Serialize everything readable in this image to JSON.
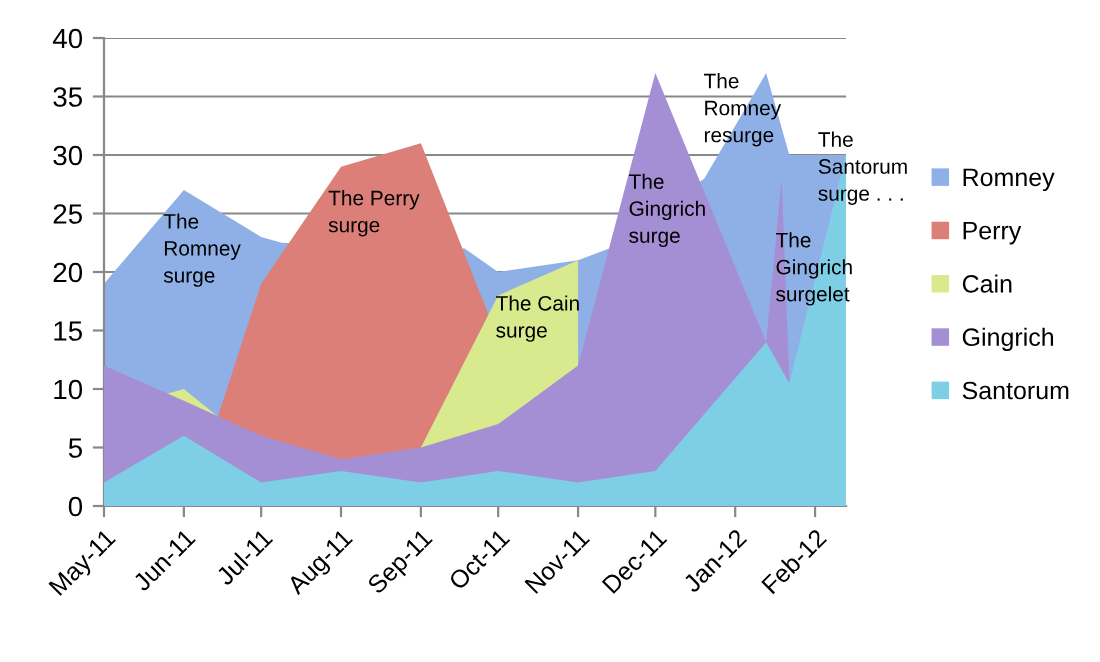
{
  "chart_data": {
    "type": "area",
    "xlim": [
      "2011-05-01",
      "2012-02-13"
    ],
    "ylim": [
      0,
      40
    ],
    "xticks": [
      {
        "value": "2011-05-01",
        "label": "May-11"
      },
      {
        "value": "2011-06-01",
        "label": "Jun-11"
      },
      {
        "value": "2011-07-01",
        "label": "Jul-11"
      },
      {
        "value": "2011-08-01",
        "label": "Aug-11"
      },
      {
        "value": "2011-09-01",
        "label": "Sep-11"
      },
      {
        "value": "2011-10-01",
        "label": "Oct-11"
      },
      {
        "value": "2011-11-01",
        "label": "Nov-11"
      },
      {
        "value": "2011-12-01",
        "label": "Dec-11"
      },
      {
        "value": "2012-01-01",
        "label": "Jan-12"
      },
      {
        "value": "2012-02-01",
        "label": "Feb-12"
      }
    ],
    "yticks": [
      0,
      5,
      10,
      15,
      20,
      25,
      30,
      35,
      40
    ],
    "grid": "y",
    "legend": "right",
    "series": [
      {
        "name": "Romney",
        "color": "#8fb0e6",
        "x": [
          "2011-05-01",
          "2011-06-01",
          "2011-07-01",
          "2011-07-09",
          "2011-09-18",
          "2011-10-01",
          "2011-11-01",
          "2011-11-13",
          "2011-12-20",
          "2012-01-13",
          "2012-01-22",
          "2012-02-13"
        ],
        "values": [
          19,
          27,
          23,
          22.5,
          22,
          20,
          21,
          22,
          28,
          37,
          30,
          30
        ]
      },
      {
        "name": "Perry",
        "color": "#dc7f78",
        "x": [
          "2011-06-14",
          "2011-07-01",
          "2011-08-01",
          "2011-09-01",
          "2011-09-27"
        ],
        "values": [
          7.5,
          19,
          29,
          31,
          16.5
        ]
      },
      {
        "name": "Cain",
        "color": "#d9ea8e",
        "x": [
          "2011-05-24",
          "2011-06-01",
          "2011-06-15",
          "2011-07-01",
          "2011-09-01",
          "2011-10-01",
          "2011-11-01"
        ],
        "values": [
          9.5,
          10,
          7.5,
          null,
          5,
          18,
          21
        ]
      },
      {
        "name": "Gingrich",
        "color": "#a58fd4",
        "x": [
          "2011-05-01",
          "2011-06-01",
          "2011-07-01",
          "2011-08-01",
          "2011-09-01",
          "2011-10-01",
          "2011-11-01",
          "2011-12-01",
          "2012-01-13",
          "2012-01-19",
          "2012-01-22"
        ],
        "values": [
          12,
          9,
          6,
          4,
          5,
          7,
          12,
          37,
          14,
          28,
          11
        ]
      },
      {
        "name": "Santorum",
        "color": "#7ecfe6",
        "x": [
          "2011-05-01",
          "2011-06-01",
          "2011-07-01",
          "2011-08-01",
          "2011-09-01",
          "2011-10-01",
          "2011-11-01",
          "2011-12-01",
          "2012-01-13",
          "2012-01-22",
          "2012-02-13"
        ],
        "values": [
          2,
          6,
          2,
          3,
          2,
          3,
          2,
          3,
          14,
          10.5,
          30
        ]
      }
    ],
    "annotations": [
      {
        "text": "The\nRomney\nsurge",
        "x": "2011-05-24",
        "y": 25
      },
      {
        "text": "The Perry\nsurge",
        "x": "2011-07-27",
        "y": 27
      },
      {
        "text": "The Cain\nsurge",
        "x": "2011-09-30",
        "y": 18
      },
      "The\nGingrich\nsurge",
      "The\nRomney\nresurge",
      "The\nGingrich\nsurgelet",
      "The\nSantorum\nsurge . . ."
    ]
  }
}
